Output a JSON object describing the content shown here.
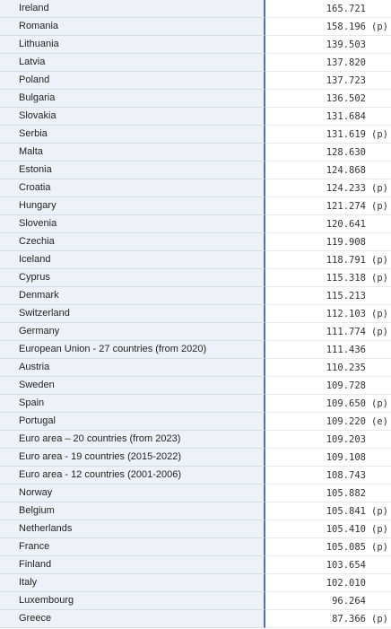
{
  "rows": [
    {
      "country": "Ireland",
      "value": "165.721",
      "flag": ""
    },
    {
      "country": "Romania",
      "value": "158.196",
      "flag": "(p)"
    },
    {
      "country": "Lithuania",
      "value": "139.503",
      "flag": ""
    },
    {
      "country": "Latvia",
      "value": "137.820",
      "flag": ""
    },
    {
      "country": "Poland",
      "value": "137.723",
      "flag": ""
    },
    {
      "country": "Bulgaria",
      "value": "136.502",
      "flag": ""
    },
    {
      "country": "Slovakia",
      "value": "131.684",
      "flag": ""
    },
    {
      "country": "Serbia",
      "value": "131.619",
      "flag": "(p)"
    },
    {
      "country": "Malta",
      "value": "128.630",
      "flag": ""
    },
    {
      "country": "Estonia",
      "value": "124.868",
      "flag": ""
    },
    {
      "country": "Croatia",
      "value": "124.233",
      "flag": "(p)"
    },
    {
      "country": "Hungary",
      "value": "121.274",
      "flag": "(p)"
    },
    {
      "country": "Slovenia",
      "value": "120.641",
      "flag": ""
    },
    {
      "country": "Czechia",
      "value": "119.908",
      "flag": ""
    },
    {
      "country": "Iceland",
      "value": "118.791",
      "flag": "(p)"
    },
    {
      "country": "Cyprus",
      "value": "115.318",
      "flag": "(p)"
    },
    {
      "country": "Denmark",
      "value": "115.213",
      "flag": ""
    },
    {
      "country": "Switzerland",
      "value": "112.103",
      "flag": "(p)"
    },
    {
      "country": "Germany",
      "value": "111.774",
      "flag": "(p)"
    },
    {
      "country": "European Union - 27 countries (from 2020)",
      "value": "111.436",
      "flag": ""
    },
    {
      "country": "Austria",
      "value": "110.235",
      "flag": ""
    },
    {
      "country": "Sweden",
      "value": "109.728",
      "flag": ""
    },
    {
      "country": "Spain",
      "value": "109.650",
      "flag": "(p)"
    },
    {
      "country": "Portugal",
      "value": "109.220",
      "flag": "(e)"
    },
    {
      "country": "Euro area – 20 countries (from 2023)",
      "value": "109.203",
      "flag": ""
    },
    {
      "country": "Euro area - 19 countries (2015-2022)",
      "value": "109.108",
      "flag": ""
    },
    {
      "country": "Euro area - 12 countries (2001-2006)",
      "value": "108.743",
      "flag": ""
    },
    {
      "country": "Norway",
      "value": "105.882",
      "flag": ""
    },
    {
      "country": "Belgium",
      "value": "105.841",
      "flag": "(p)"
    },
    {
      "country": "Netherlands",
      "value": "105.410",
      "flag": "(p)"
    },
    {
      "country": "France",
      "value": "105.085",
      "flag": "(p)"
    },
    {
      "country": "Finland",
      "value": "103.654",
      "flag": ""
    },
    {
      "country": "Italy",
      "value": "102.010",
      "flag": ""
    },
    {
      "country": "Luxembourg",
      "value": "96.264",
      "flag": ""
    },
    {
      "country": "Greece",
      "value": "87.366",
      "flag": "(p)"
    }
  ]
}
